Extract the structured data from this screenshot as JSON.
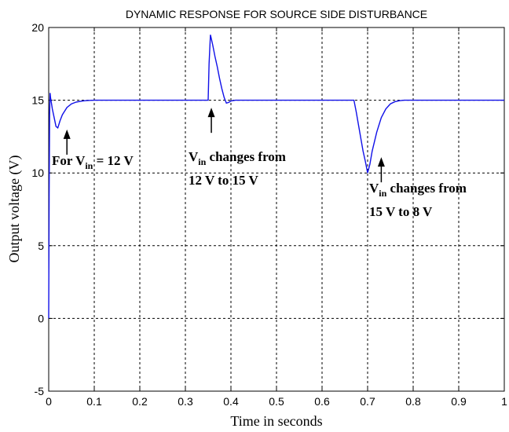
{
  "chart_data": {
    "type": "line",
    "title": "DYNAMIC RESPONSE FOR SOURCE SIDE DISTURBANCE",
    "xlabel": "Time in seconds",
    "ylabel": "Output voltage (V)",
    "xlim": [
      0,
      1
    ],
    "ylim": [
      -5,
      20
    ],
    "grid": true,
    "x_ticks": [
      0,
      0.1,
      0.2,
      0.3,
      0.4,
      0.5,
      0.6,
      0.7,
      0.8,
      0.9,
      1
    ],
    "x_tick_labels": [
      "0",
      "0.1",
      "0.2",
      "0.3",
      "0.4",
      "0.5",
      "0.6",
      "0.7",
      "0.8",
      "0.9",
      "1"
    ],
    "y_ticks": [
      -5,
      0,
      5,
      10,
      15,
      20
    ],
    "y_tick_labels": [
      "-5",
      "0",
      "5",
      "10",
      "15",
      "20"
    ],
    "colors": {
      "series": "#1010e8"
    },
    "series": [
      {
        "x": [
          0,
          0.001,
          0.002,
          0.003,
          0.004,
          0.006,
          0.008,
          0.012,
          0.016,
          0.02,
          0.025,
          0.03,
          0.04,
          0.05,
          0.06,
          0.07,
          0.08,
          0.09,
          0.1,
          0.2,
          0.3,
          0.35,
          0.352,
          0.355,
          0.36,
          0.365,
          0.37,
          0.375,
          0.38,
          0.385,
          0.39,
          0.395,
          0.4,
          0.41,
          0.42,
          0.5,
          0.6,
          0.67,
          0.675,
          0.68,
          0.685,
          0.69,
          0.695,
          0.7,
          0.705,
          0.71,
          0.72,
          0.73,
          0.74,
          0.75,
          0.76,
          0.77,
          0.78,
          0.8,
          0.9,
          1.0
        ],
        "y": [
          0,
          8.5,
          14.0,
          15.5,
          15.2,
          14.8,
          14.4,
          13.8,
          13.2,
          13.1,
          13.6,
          14.0,
          14.5,
          14.75,
          14.87,
          14.93,
          14.97,
          14.99,
          15.0,
          15.0,
          15.0,
          15.0,
          17.5,
          19.5,
          18.8,
          18.0,
          17.3,
          16.5,
          15.8,
          15.2,
          14.8,
          14.85,
          14.95,
          15.0,
          15.0,
          15.0,
          15.0,
          15.0,
          14.2,
          13.3,
          12.4,
          11.5,
          10.8,
          10.0,
          10.6,
          11.5,
          12.8,
          13.8,
          14.4,
          14.75,
          14.9,
          14.97,
          15.0,
          15.0,
          15.0,
          15.0
        ]
      }
    ],
    "annotations": [
      {
        "prefix": "For V",
        "sub": "in",
        "suffix": " = 12 V",
        "line2": "",
        "x": 0.04,
        "y": 13.2
      },
      {
        "prefix": "V",
        "sub": "in",
        "suffix": " changes from",
        "line2": "12 V to 15 V",
        "x": 0.357,
        "y": 14.7
      },
      {
        "prefix": "V",
        "sub": "in",
        "suffix": " changes from",
        "line2": "15 V to 8 V",
        "x": 0.73,
        "y": 11.3
      }
    ]
  }
}
